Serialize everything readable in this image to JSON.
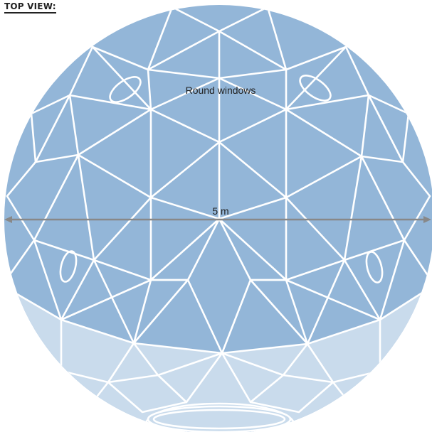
{
  "title": "TOP VIEW:",
  "windows_label": "Round windows",
  "dimension_label": "5 m",
  "colors": {
    "upper_panels": "#93b6d8",
    "lower_panels": "#c9dbec",
    "frame_lines": "#ffffff",
    "dimension_arrow": "#888888",
    "text": "#222222"
  }
}
